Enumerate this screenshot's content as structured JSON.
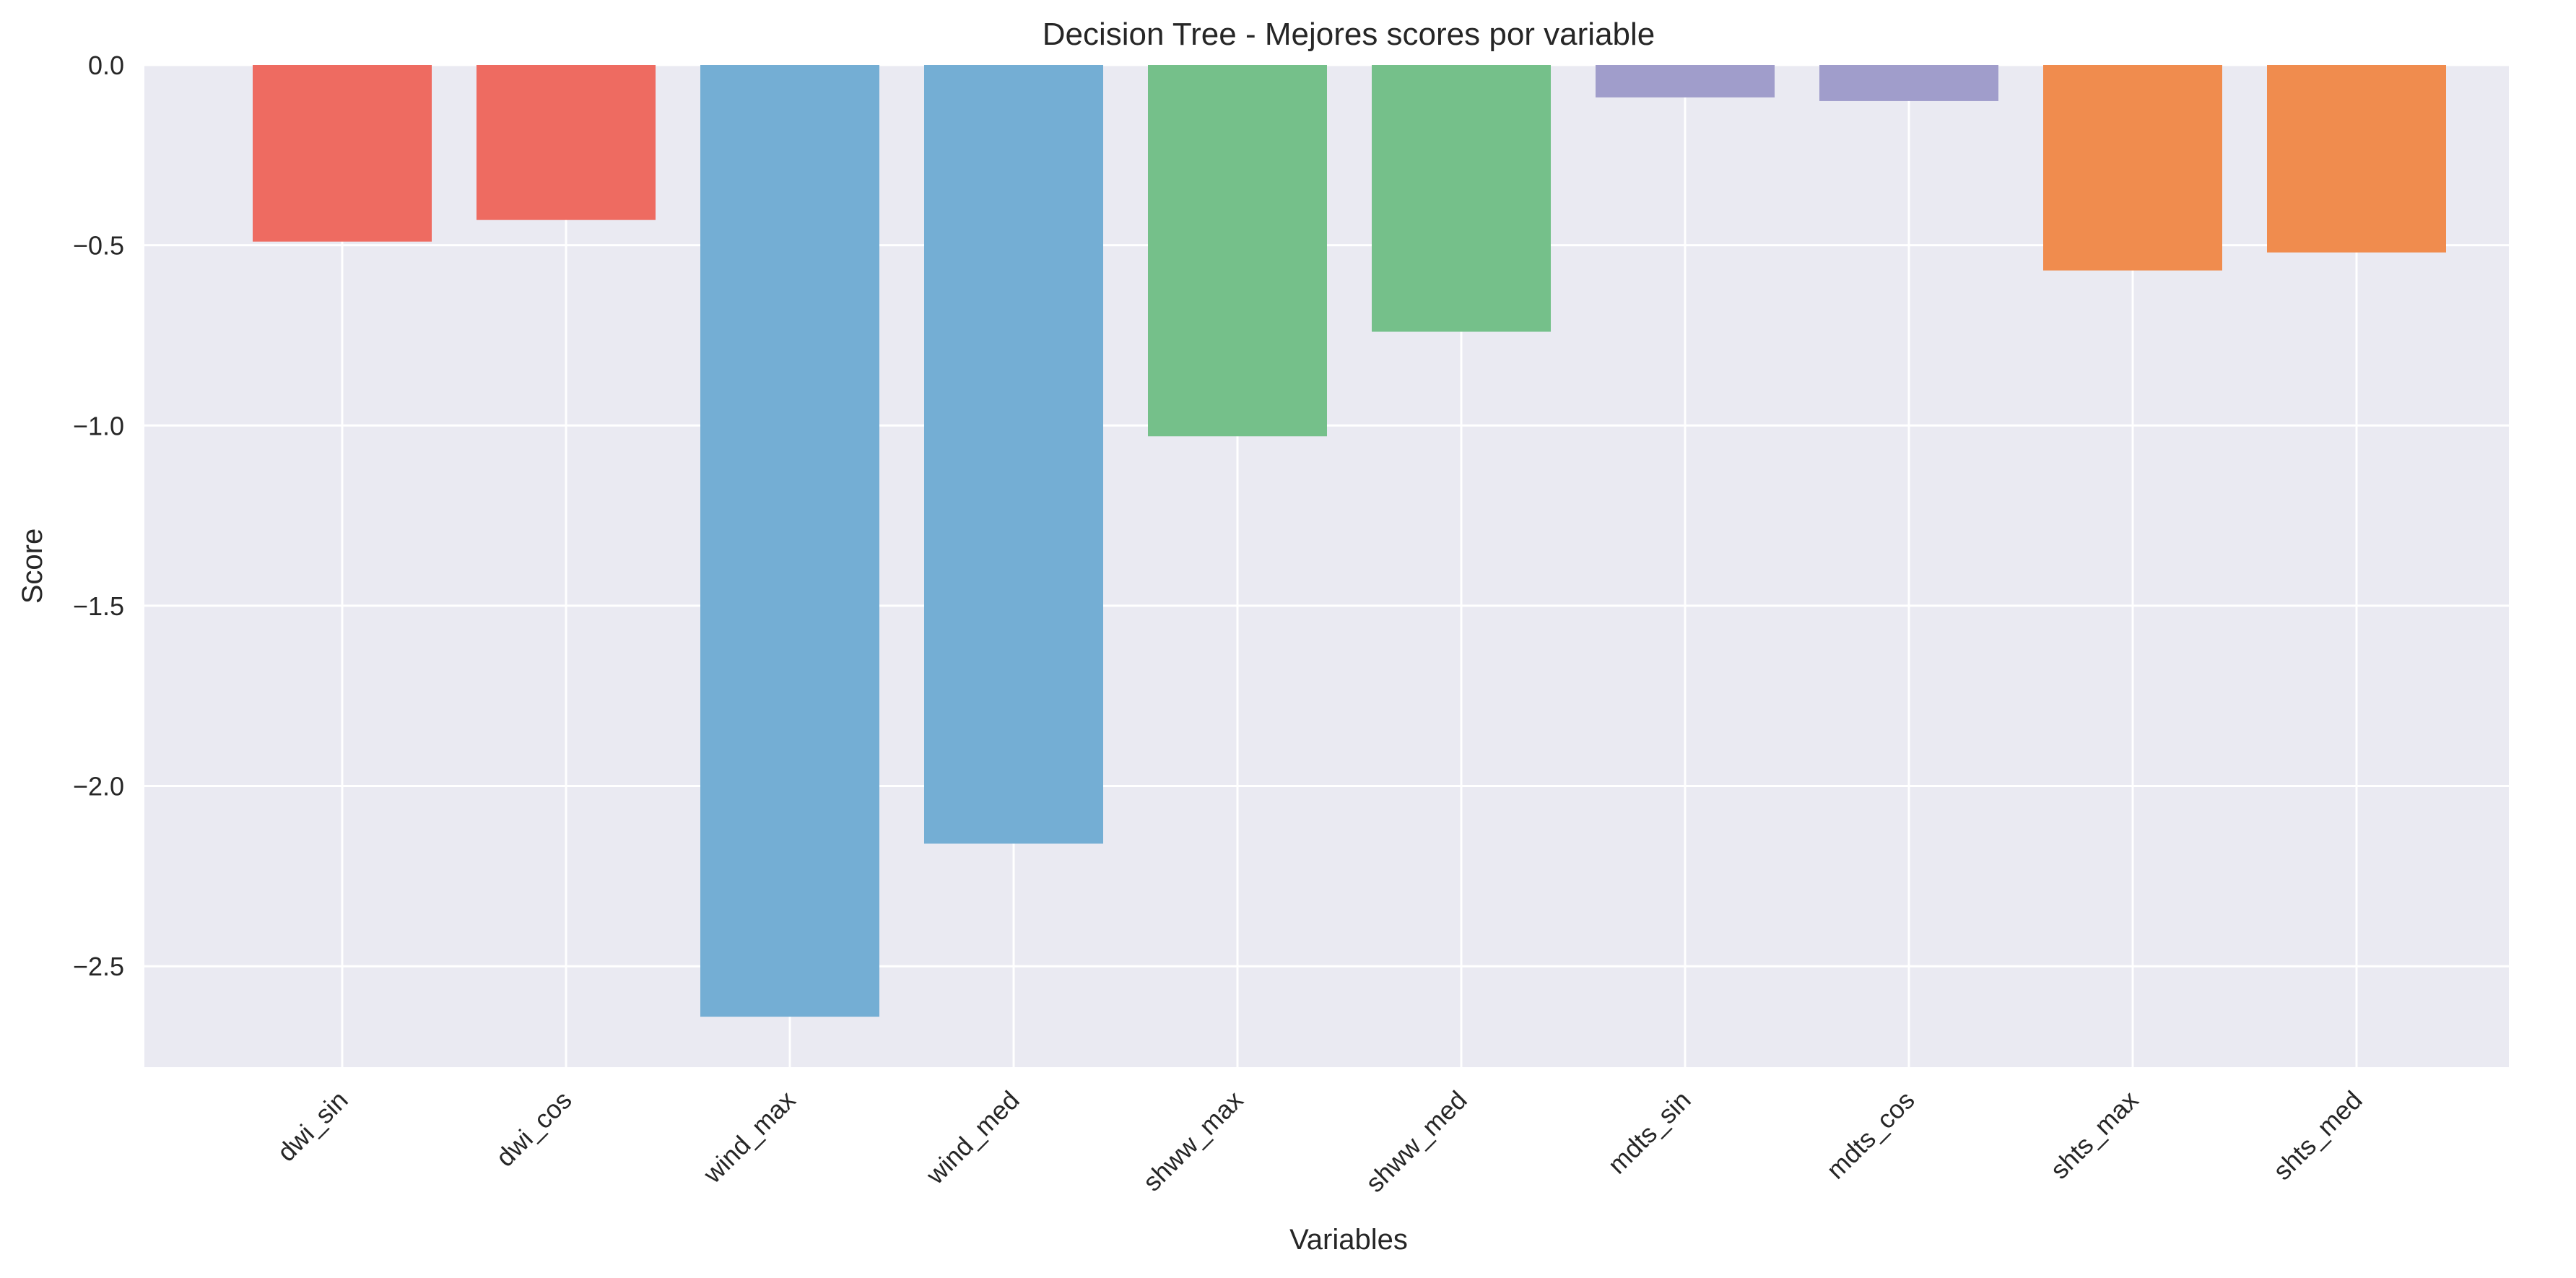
{
  "chart_data": {
    "type": "bar",
    "title": "Decision Tree - Mejores scores por variable",
    "xlabel": "Variables",
    "ylabel": "Score",
    "categories": [
      "dwi_sin",
      "dwi_cos",
      "wind_max",
      "wind_med",
      "shww_max",
      "shww_med",
      "mdts_sin",
      "mdts_cos",
      "shts_max",
      "shts_med"
    ],
    "values": [
      -0.49,
      -0.43,
      -2.64,
      -2.16,
      -1.03,
      -0.74,
      -0.09,
      -0.1,
      -0.57,
      -0.52
    ],
    "bar_colors": [
      "#ee6b61",
      "#ee6b61",
      "#74aed4",
      "#74aed4",
      "#75c08a",
      "#75c08a",
      "#a09dcb",
      "#a09dcb",
      "#f08c4e",
      "#f08c4e"
    ],
    "ylim": [
      -2.78,
      0.0
    ],
    "yticks": [
      0.0,
      -0.5,
      -1.0,
      -1.5,
      -2.0,
      -2.5
    ],
    "ytick_labels": [
      "0.0",
      "−0.5",
      "−1.0",
      "−1.5",
      "−2.0",
      "−2.5"
    ],
    "grid": true,
    "plot_background": "#eaeaf2"
  }
}
